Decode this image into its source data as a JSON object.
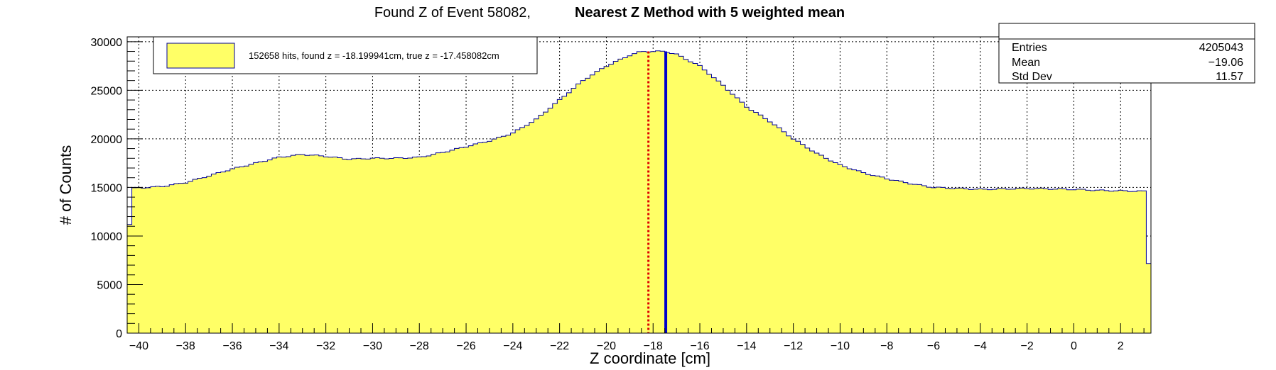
{
  "title": {
    "part1": "Found Z of Event 58082,",
    "part2": "Nearest Z Method with 5 weighted mean"
  },
  "stats": {
    "rows": [
      {
        "label": "Entries",
        "value": "4205043"
      },
      {
        "label": "Mean",
        "value": "−19.06"
      },
      {
        "label": "Std Dev",
        "value": "11.57"
      }
    ]
  },
  "legend": {
    "text": "152658 hits, found z = -18.199941cm, true z = -17.458082cm",
    "fill": "#ffff66"
  },
  "colors": {
    "fill": "#ffff66",
    "outline": "#000099",
    "found_line": "#dd0000",
    "true_line": "#0000cc"
  },
  "chart_data": {
    "type": "bar",
    "subtype": "histogram",
    "xlabel": "Z coordinate [cm]",
    "ylabel": "# of Counts",
    "xlim": [
      -40.5,
      3.3
    ],
    "ylim": [
      0,
      30500
    ],
    "grid": true,
    "legend_position": "top-left",
    "x_ticks": [
      -40,
      -38,
      -36,
      -34,
      -32,
      -30,
      -28,
      -26,
      -24,
      -22,
      -20,
      -18,
      -16,
      -14,
      -12,
      -10,
      -8,
      -6,
      -4,
      -2,
      0,
      2
    ],
    "y_ticks": [
      0,
      5000,
      10000,
      15000,
      20000,
      25000,
      30000
    ],
    "x_tick_labels": [
      "−40",
      "−38",
      "−36",
      "−34",
      "−32",
      "−30",
      "−28",
      "−26",
      "−24",
      "−22",
      "−20",
      "−18",
      "−16",
      "−14",
      "−12",
      "−10",
      "−8",
      "−6",
      "−4",
      "−2",
      "0",
      "2"
    ],
    "y_tick_labels": [
      "0",
      "5000",
      "10000",
      "15000",
      "20000",
      "25000",
      "30000"
    ],
    "bin_width": 0.2,
    "profile": [
      {
        "x": -40.5,
        "y": 7500
      },
      {
        "x": -40.3,
        "y": 14900
      },
      {
        "x": -39,
        "y": 15100
      },
      {
        "x": -38,
        "y": 15500
      },
      {
        "x": -37,
        "y": 16200
      },
      {
        "x": -36,
        "y": 16900
      },
      {
        "x": -35,
        "y": 17500
      },
      {
        "x": -34,
        "y": 18100
      },
      {
        "x": -33,
        "y": 18400
      },
      {
        "x": -32,
        "y": 18200
      },
      {
        "x": -31,
        "y": 17900
      },
      {
        "x": -30,
        "y": 18000
      },
      {
        "x": -29,
        "y": 18000
      },
      {
        "x": -28,
        "y": 18100
      },
      {
        "x": -27,
        "y": 18600
      },
      {
        "x": -26,
        "y": 19200
      },
      {
        "x": -25,
        "y": 19800
      },
      {
        "x": -24,
        "y": 20600
      },
      {
        "x": -23,
        "y": 22000
      },
      {
        "x": -22,
        "y": 24000
      },
      {
        "x": -21,
        "y": 26000
      },
      {
        "x": -20,
        "y": 27500
      },
      {
        "x": -19,
        "y": 28600
      },
      {
        "x": -18.5,
        "y": 29000
      },
      {
        "x": -17.5,
        "y": 29000
      },
      {
        "x": -17,
        "y": 28700
      },
      {
        "x": -16,
        "y": 27500
      },
      {
        "x": -15,
        "y": 25500
      },
      {
        "x": -14,
        "y": 23300
      },
      {
        "x": -13,
        "y": 21800
      },
      {
        "x": -12,
        "y": 20000
      },
      {
        "x": -11,
        "y": 18500
      },
      {
        "x": -10,
        "y": 17300
      },
      {
        "x": -9,
        "y": 16500
      },
      {
        "x": -8,
        "y": 15900
      },
      {
        "x": -7,
        "y": 15400
      },
      {
        "x": -6,
        "y": 15000
      },
      {
        "x": -5,
        "y": 14900
      },
      {
        "x": -4,
        "y": 14800
      },
      {
        "x": -2,
        "y": 14900
      },
      {
        "x": 0,
        "y": 14800
      },
      {
        "x": 1,
        "y": 14700
      },
      {
        "x": 3,
        "y": 14600
      },
      {
        "x": 3.1,
        "y": 7200
      }
    ],
    "markers": [
      {
        "x": -18.199941,
        "style": "dotted",
        "color": "#dd0000"
      },
      {
        "x": -17.458082,
        "style": "solid",
        "color": "#0000cc"
      }
    ]
  }
}
